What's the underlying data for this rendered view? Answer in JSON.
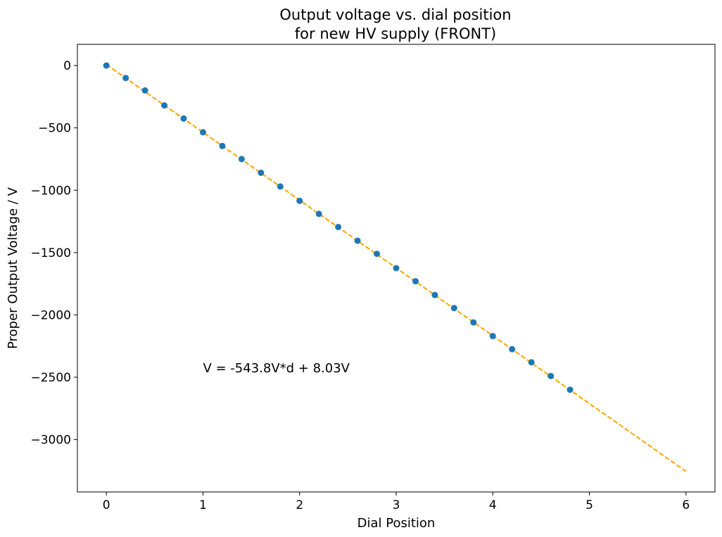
{
  "chart_data": {
    "type": "scatter",
    "title_line1": "Output voltage vs. dial position",
    "title_line2": "for new HV supply (FRONT)",
    "xlabel": "Dial Position",
    "ylabel": "Proper Output Voltage / V",
    "xlim": [
      -0.3,
      6.3
    ],
    "ylim": [
      -3420,
      170
    ],
    "xticks": [
      0,
      1,
      2,
      3,
      4,
      5,
      6
    ],
    "yticks": [
      0,
      -500,
      -1000,
      -1500,
      -2000,
      -2500,
      -3000
    ],
    "ytick_labels": [
      "0",
      "−500",
      "−1000",
      "−1500",
      "−2000",
      "−2500",
      "−3000"
    ],
    "grid": false,
    "annotation": {
      "text": "V = -543.8V*d + 8.03V",
      "x": 1.0,
      "y": -2460
    },
    "series": [
      {
        "marker_color": "#1f77b4",
        "x": [
          0.0,
          0.2,
          0.4,
          0.6,
          0.8,
          1.0,
          1.2,
          1.4,
          1.6,
          1.8,
          2.0,
          2.2,
          2.4,
          2.6,
          2.8,
          3.0,
          3.2,
          3.4,
          3.6,
          3.8,
          4.0,
          4.2,
          4.4,
          4.6,
          4.8
        ],
        "y": [
          0,
          -100,
          -200,
          -320,
          -425,
          -535,
          -645,
          -750,
          -860,
          -970,
          -1085,
          -1190,
          -1295,
          -1405,
          -1510,
          -1625,
          -1730,
          -1840,
          -1945,
          -2060,
          -2170,
          -2275,
          -2380,
          -2490,
          -2600
        ]
      }
    ],
    "fit_line": {
      "color": "#ffa500",
      "style": "dashed",
      "slope": -543.8,
      "intercept": 8.03,
      "x_range": [
        0,
        6
      ]
    }
  }
}
